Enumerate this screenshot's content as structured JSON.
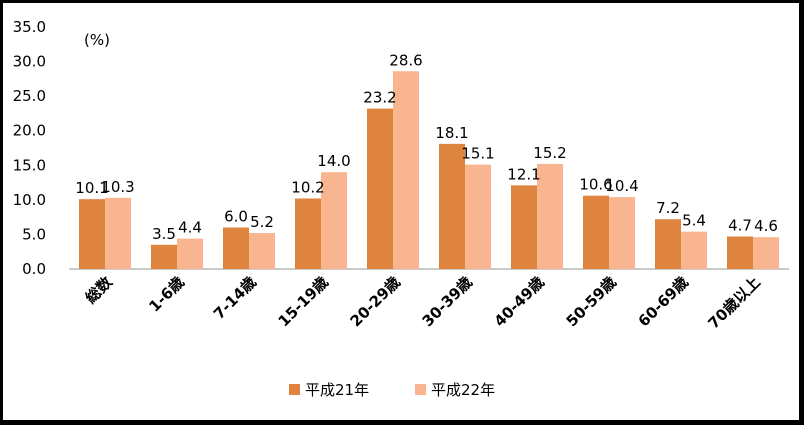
{
  "chart_data": {
    "type": "bar",
    "unit_label": "(%)",
    "categories": [
      "総数",
      "1-6歳",
      "7-14歳",
      "15-19歳",
      "20-29歳",
      "30-39歳",
      "40-49歳",
      "50-59歳",
      "60-69歳",
      "70歳以上"
    ],
    "series": [
      {
        "name": "平成21年",
        "color": "#DE843E",
        "values": [
          10.1,
          3.5,
          6.0,
          10.2,
          23.2,
          18.1,
          12.1,
          10.6,
          7.2,
          4.7
        ]
      },
      {
        "name": "平成22年",
        "color": "#F8B590",
        "values": [
          10.3,
          4.4,
          5.2,
          14.0,
          28.6,
          15.1,
          15.2,
          10.4,
          5.4,
          4.6
        ]
      }
    ],
    "ylim": [
      0,
      35
    ],
    "yticks": [
      "0.0",
      "5.0",
      "10.0",
      "15.0",
      "20.0",
      "25.0",
      "30.0",
      "35.0"
    ],
    "grid": false,
    "legend_position": "bottom"
  }
}
